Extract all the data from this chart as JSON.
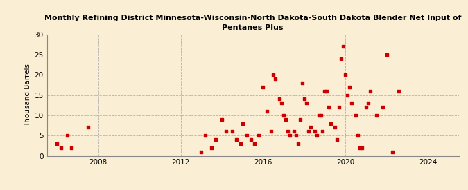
{
  "title": "Monthly Refining District Minnesota-Wisconsin-North Dakota-South Dakota Blender Net Input of\nPentanes Plus",
  "ylabel": "Thousand Barrels",
  "background_color": "#faefd4",
  "marker_color": "#cc0000",
  "xlim": [
    2005.5,
    2025.5
  ],
  "ylim": [
    0,
    30
  ],
  "yticks": [
    0,
    5,
    10,
    15,
    20,
    25,
    30
  ],
  "xticks": [
    2008,
    2012,
    2016,
    2020,
    2024
  ],
  "data_x": [
    2006.0,
    2006.2,
    2006.5,
    2006.7,
    2007.5,
    2013.0,
    2013.2,
    2013.5,
    2013.7,
    2014.0,
    2014.2,
    2014.5,
    2014.7,
    2014.9,
    2015.0,
    2015.2,
    2015.4,
    2015.6,
    2015.8,
    2016.0,
    2016.2,
    2016.4,
    2016.5,
    2016.6,
    2016.8,
    2016.9,
    2017.0,
    2017.1,
    2017.2,
    2017.3,
    2017.5,
    2017.6,
    2017.7,
    2017.8,
    2017.9,
    2018.0,
    2018.1,
    2018.2,
    2018.3,
    2018.5,
    2018.6,
    2018.7,
    2018.8,
    2018.9,
    2019.0,
    2019.1,
    2019.2,
    2019.3,
    2019.5,
    2019.6,
    2019.7,
    2019.8,
    2019.9,
    2020.0,
    2020.1,
    2020.2,
    2020.3,
    2020.5,
    2020.6,
    2020.7,
    2020.8,
    2021.0,
    2021.1,
    2021.2,
    2021.5,
    2021.8,
    2022.0,
    2022.3,
    2022.6
  ],
  "data_y": [
    3,
    2,
    5,
    2,
    7,
    1,
    5,
    2,
    4,
    9,
    6,
    6,
    4,
    3,
    8,
    5,
    4,
    3,
    5,
    17,
    11,
    6,
    20,
    19,
    14,
    13,
    10,
    9,
    6,
    5,
    6,
    5,
    3,
    9,
    18,
    14,
    13,
    6,
    7,
    6,
    5,
    10,
    10,
    6,
    16,
    16,
    12,
    8,
    7,
    4,
    12,
    24,
    27,
    20,
    15,
    17,
    13,
    10,
    5,
    2,
    2,
    12,
    13,
    16,
    10,
    12,
    25,
    1,
    16
  ],
  "title_fontsize": 8.0,
  "ylabel_fontsize": 7.5,
  "tick_fontsize": 7.5,
  "source_fontsize": 6.5,
  "marker_size": 10
}
